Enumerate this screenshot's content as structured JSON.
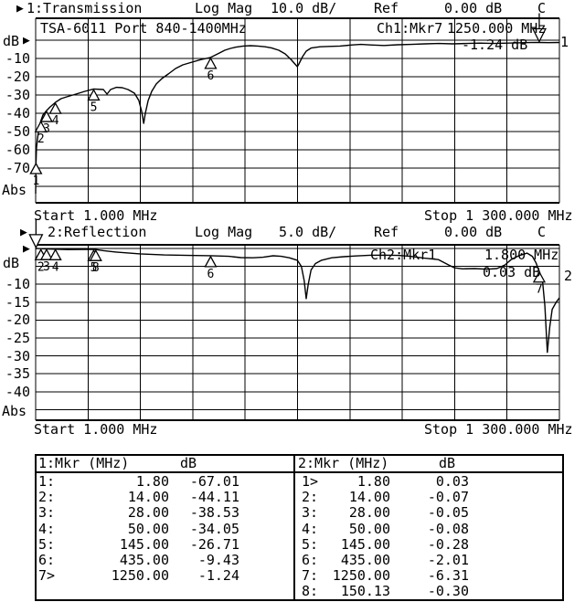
{
  "colors": {
    "fg": "#000000",
    "bg": "#ffffff"
  },
  "icons": {
    "ref_marker": "▶"
  },
  "ch1": {
    "prefix": "1:Transmission",
    "format": "Log Mag",
    "scale": "10.0 dB/",
    "ref_label": "Ref",
    "ref_value": "0.00 dB",
    "cal_status": "C",
    "device_title": "TSA-6011 Port 840-1400MHz",
    "marker_label": "Ch1:Mkr7",
    "marker_freq": "1250.000 MHz",
    "marker_value": "-1.24 dB",
    "unit": "dB",
    "abs_label": "Abs",
    "trace_number": "1",
    "start_label": "Start 1.000 MHz",
    "stop_label": "Stop 1 300.000 MHz"
  },
  "ch2": {
    "prefix": "2:Reflection",
    "format": "Log Mag",
    "scale": "5.0 dB/",
    "ref_label": "Ref",
    "ref_value": "0.00 dB",
    "cal_status": "C",
    "marker_label": "Ch2:Mkr1",
    "marker_freq": "1.800 MHz",
    "marker_value": "0.03 dB",
    "unit": "dB",
    "abs_label": "Abs",
    "trace_number": "2",
    "start_label": "Start 1.000 MHz",
    "stop_label": "Stop 1 300.000 MHz"
  },
  "chart_data": [
    {
      "type": "line",
      "name": "Transmission",
      "channel": 1,
      "scale_db_per_div": 10.0,
      "ref_db": 0.0,
      "x_unit": "MHz",
      "xlim": [
        1,
        1300
      ],
      "grid": true,
      "y_tick_labels": [
        -10,
        -20,
        -30,
        -40,
        -50,
        -60,
        -70
      ],
      "points": [
        [
          1,
          -84
        ],
        [
          1.4,
          -74
        ],
        [
          1.8,
          -67.01
        ],
        [
          3,
          -59
        ],
        [
          5.5,
          -54
        ],
        [
          8,
          -50
        ],
        [
          10,
          -47
        ],
        [
          14,
          -44.11
        ],
        [
          19,
          -41
        ],
        [
          28,
          -38.53
        ],
        [
          37,
          -36.5
        ],
        [
          50,
          -34.05
        ],
        [
          64,
          -32
        ],
        [
          78,
          -31
        ],
        [
          101,
          -29.5
        ],
        [
          123,
          -28
        ],
        [
          145,
          -26.71
        ],
        [
          169,
          -27
        ],
        [
          178,
          -29.5
        ],
        [
          187,
          -27
        ],
        [
          201,
          -25.8
        ],
        [
          216,
          -26
        ],
        [
          230,
          -27
        ],
        [
          246,
          -29
        ],
        [
          257,
          -33
        ],
        [
          264,
          -39
        ],
        [
          269,
          -45.5
        ],
        [
          273,
          -40
        ],
        [
          280,
          -33
        ],
        [
          289,
          -28
        ],
        [
          300,
          -24
        ],
        [
          314,
          -21
        ],
        [
          330,
          -18.5
        ],
        [
          348,
          -15.5
        ],
        [
          366,
          -13.5
        ],
        [
          389,
          -12
        ],
        [
          411,
          -10.6
        ],
        [
          435,
          -9.43
        ],
        [
          457,
          -7
        ],
        [
          470,
          -5.5
        ],
        [
          484,
          -4.5
        ],
        [
          498,
          -3.8
        ],
        [
          516,
          -3.2
        ],
        [
          534,
          -3.0
        ],
        [
          552,
          -3.2
        ],
        [
          570,
          -3.6
        ],
        [
          586,
          -4.2
        ],
        [
          604,
          -5.5
        ],
        [
          620,
          -7.5
        ],
        [
          634,
          -10.5
        ],
        [
          650,
          -14.5
        ],
        [
          654,
          -13
        ],
        [
          663,
          -9
        ],
        [
          672,
          -6
        ],
        [
          684,
          -4.3
        ],
        [
          706,
          -3.6
        ],
        [
          729,
          -3.4
        ],
        [
          756,
          -3.2
        ],
        [
          786,
          -2.6
        ],
        [
          808,
          -2.3
        ],
        [
          831,
          -2.6
        ],
        [
          865,
          -2.9
        ],
        [
          899,
          -2.5
        ],
        [
          933,
          -2.3
        ],
        [
          967,
          -2.0
        ],
        [
          1001,
          -1.8
        ],
        [
          1035,
          -2.0
        ],
        [
          1069,
          -1.8
        ],
        [
          1103,
          -1.6
        ],
        [
          1137,
          -1.8
        ],
        [
          1171,
          -1.6
        ],
        [
          1205,
          -1.4
        ],
        [
          1228,
          -1.3
        ],
        [
          1250,
          -1.24
        ],
        [
          1273,
          -1.35
        ],
        [
          1300,
          -1.25
        ]
      ],
      "markers": [
        {
          "n": 1,
          "MHz": 1.8,
          "dB": -67.01
        },
        {
          "n": 2,
          "MHz": 14,
          "dB": -44.11
        },
        {
          "n": 3,
          "MHz": 28,
          "dB": -38.53
        },
        {
          "n": 4,
          "MHz": 50,
          "dB": -34.05
        },
        {
          "n": 5,
          "MHz": 145,
          "dB": -26.71
        },
        {
          "n": 6,
          "MHz": 435,
          "dB": -9.43
        },
        {
          "n": 7,
          "MHz": 1250,
          "dB": -1.24,
          "active": true
        }
      ]
    },
    {
      "type": "line",
      "name": "Reflection",
      "channel": 2,
      "scale_db_per_div": 5.0,
      "ref_db": 0.0,
      "x_unit": "MHz",
      "xlim": [
        1,
        1300
      ],
      "grid": true,
      "y_tick_labels": [
        -10,
        -15,
        -20,
        -25,
        -30,
        -35,
        -40
      ],
      "points": [
        [
          1,
          -0.2
        ],
        [
          1.8,
          0.03
        ],
        [
          30,
          -0.15
        ],
        [
          80,
          -0.3
        ],
        [
          120,
          -0.25
        ],
        [
          145,
          -0.28
        ],
        [
          150.13,
          -0.3
        ],
        [
          170,
          -0.6
        ],
        [
          200,
          -1.0
        ],
        [
          260,
          -1.5
        ],
        [
          320,
          -1.8
        ],
        [
          380,
          -1.95
        ],
        [
          435,
          -2.01
        ],
        [
          480,
          -2.2
        ],
        [
          510,
          -2.55
        ],
        [
          540,
          -2.6
        ],
        [
          565,
          -2.45
        ],
        [
          590,
          -2.05
        ],
        [
          610,
          -2.2
        ],
        [
          630,
          -2.6
        ],
        [
          650,
          -3.3
        ],
        [
          660,
          -5
        ],
        [
          667,
          -9
        ],
        [
          672,
          -14
        ],
        [
          677,
          -10
        ],
        [
          684,
          -6
        ],
        [
          695,
          -4.2
        ],
        [
          710,
          -3.3
        ],
        [
          735,
          -2.6
        ],
        [
          765,
          -2.3
        ],
        [
          795,
          -2.1
        ],
        [
          830,
          -1.9
        ],
        [
          865,
          -1.85
        ],
        [
          900,
          -1.95
        ],
        [
          930,
          -2.2
        ],
        [
          965,
          -2.7
        ],
        [
          1000,
          -3.1
        ],
        [
          1025,
          -4.6
        ],
        [
          1040,
          -5.4
        ],
        [
          1060,
          -5.7
        ],
        [
          1090,
          -5.6
        ],
        [
          1120,
          -5.8
        ],
        [
          1145,
          -5.6
        ],
        [
          1165,
          -4.6
        ],
        [
          1180,
          -3.1
        ],
        [
          1200,
          -2.0
        ],
        [
          1220,
          -1.3
        ],
        [
          1233,
          -2.2
        ],
        [
          1242,
          -4.0
        ],
        [
          1250,
          -6.31
        ],
        [
          1258,
          -9
        ],
        [
          1264,
          -16
        ],
        [
          1270,
          -29
        ],
        [
          1276,
          -22
        ],
        [
          1282,
          -17
        ],
        [
          1292,
          -15
        ],
        [
          1300,
          -13.8
        ]
      ],
      "markers": [
        {
          "n": 1,
          "MHz": 1.8,
          "dB": 0.03,
          "active": true
        },
        {
          "n": 2,
          "MHz": 14,
          "dB": -0.07
        },
        {
          "n": 3,
          "MHz": 28,
          "dB": -0.05
        },
        {
          "n": 4,
          "MHz": 50,
          "dB": -0.08
        },
        {
          "n": 5,
          "MHz": 145,
          "dB": -0.28
        },
        {
          "n": 6,
          "MHz": 435,
          "dB": -2.01
        },
        {
          "n": 7,
          "MHz": 1250,
          "dB": -6.31
        },
        {
          "n": 8,
          "MHz": 150.13,
          "dB": -0.3
        }
      ]
    }
  ],
  "marker_table": {
    "left": {
      "header_mkr": "1:Mkr (MHz)",
      "header_db": "dB",
      "rows": [
        [
          "1:",
          "1.80",
          "-67.01"
        ],
        [
          "2:",
          "14.00",
          "-44.11"
        ],
        [
          "3:",
          "28.00",
          "-38.53"
        ],
        [
          "4:",
          "50.00",
          "-34.05"
        ],
        [
          "5:",
          "145.00",
          "-26.71"
        ],
        [
          "6:",
          "435.00",
          "-9.43"
        ],
        [
          "7>",
          "1250.00",
          "-1.24"
        ]
      ]
    },
    "right": {
      "header_mkr": "2:Mkr (MHz)",
      "header_db": "dB",
      "rows": [
        [
          "1>",
          "1.80",
          "0.03"
        ],
        [
          "2:",
          "14.00",
          "-0.07"
        ],
        [
          "3:",
          "28.00",
          "-0.05"
        ],
        [
          "4:",
          "50.00",
          "-0.08"
        ],
        [
          "5:",
          "145.00",
          "-0.28"
        ],
        [
          "6:",
          "435.00",
          "-2.01"
        ],
        [
          "7:",
          "1250.00",
          "-6.31"
        ],
        [
          "8:",
          "150.13",
          "-0.30"
        ]
      ]
    }
  }
}
